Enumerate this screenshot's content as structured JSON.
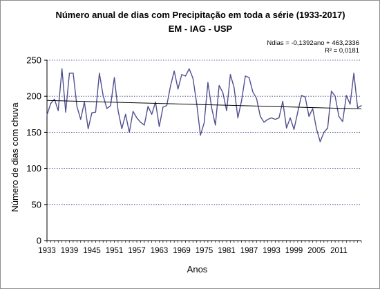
{
  "chart_data": {
    "type": "line",
    "title": "Número anual  de dias com Precipitação  em toda a série (1933-2017)",
    "subtitle": "EM - IAG - USP",
    "xlabel": "Anos",
    "ylabel": "Número de dias com chuva",
    "xlim": [
      1933,
      2017
    ],
    "ylim": [
      0,
      250
    ],
    "y_ticks": [
      0,
      50,
      100,
      150,
      200,
      250
    ],
    "x_tick_labels": [
      "1933",
      "1939",
      "1945",
      "1951",
      "1957",
      "1963",
      "1969",
      "1975",
      "1981",
      "1987",
      "1993",
      "1999",
      "2005",
      "2011"
    ],
    "grid": "horizontal-dotted",
    "series": [
      {
        "color": "#4f4f8f",
        "x": [
          1933,
          1934,
          1935,
          1936,
          1937,
          1938,
          1939,
          1940,
          1941,
          1942,
          1943,
          1944,
          1945,
          1946,
          1947,
          1948,
          1949,
          1950,
          1951,
          1952,
          1953,
          1954,
          1955,
          1956,
          1957,
          1958,
          1959,
          1960,
          1961,
          1962,
          1963,
          1964,
          1965,
          1966,
          1967,
          1968,
          1969,
          1970,
          1971,
          1972,
          1973,
          1974,
          1975,
          1976,
          1977,
          1978,
          1979,
          1980,
          1981,
          1982,
          1983,
          1984,
          1985,
          1986,
          1987,
          1988,
          1989,
          1990,
          1991,
          1992,
          1993,
          1994,
          1995,
          1996,
          1997,
          1998,
          1999,
          2000,
          2001,
          2002,
          2003,
          2004,
          2005,
          2006,
          2007,
          2008,
          2009,
          2010,
          2011,
          2012,
          2013,
          2014,
          2015,
          2016,
          2017
        ],
        "y": [
          174,
          190,
          196,
          180,
          238,
          178,
          232,
          232,
          186,
          168,
          192,
          155,
          177,
          178,
          232,
          201,
          183,
          187,
          226,
          180,
          155,
          175,
          150,
          179,
          170,
          164,
          160,
          186,
          175,
          192,
          158,
          185,
          187,
          214,
          235,
          210,
          230,
          228,
          238,
          225,
          190,
          146,
          163,
          219,
          184,
          160,
          215,
          205,
          180,
          230,
          212,
          170,
          194,
          228,
          226,
          206,
          197,
          172,
          164,
          168,
          170,
          168,
          170,
          193,
          156,
          170,
          154,
          178,
          201,
          199,
          172,
          183,
          155,
          137,
          150,
          156,
          207,
          200,
          172,
          165,
          201,
          189,
          232,
          184,
          187
        ]
      },
      {
        "name_shown": "",
        "color": "#000000",
        "type": "trendline",
        "x": [
          1933,
          2017
        ],
        "y": [
          194.2,
          182.5
        ]
      }
    ],
    "annotations": [
      "Ndias = -0,1392ano  + 463,2336",
      "R² = 0,0181"
    ]
  }
}
